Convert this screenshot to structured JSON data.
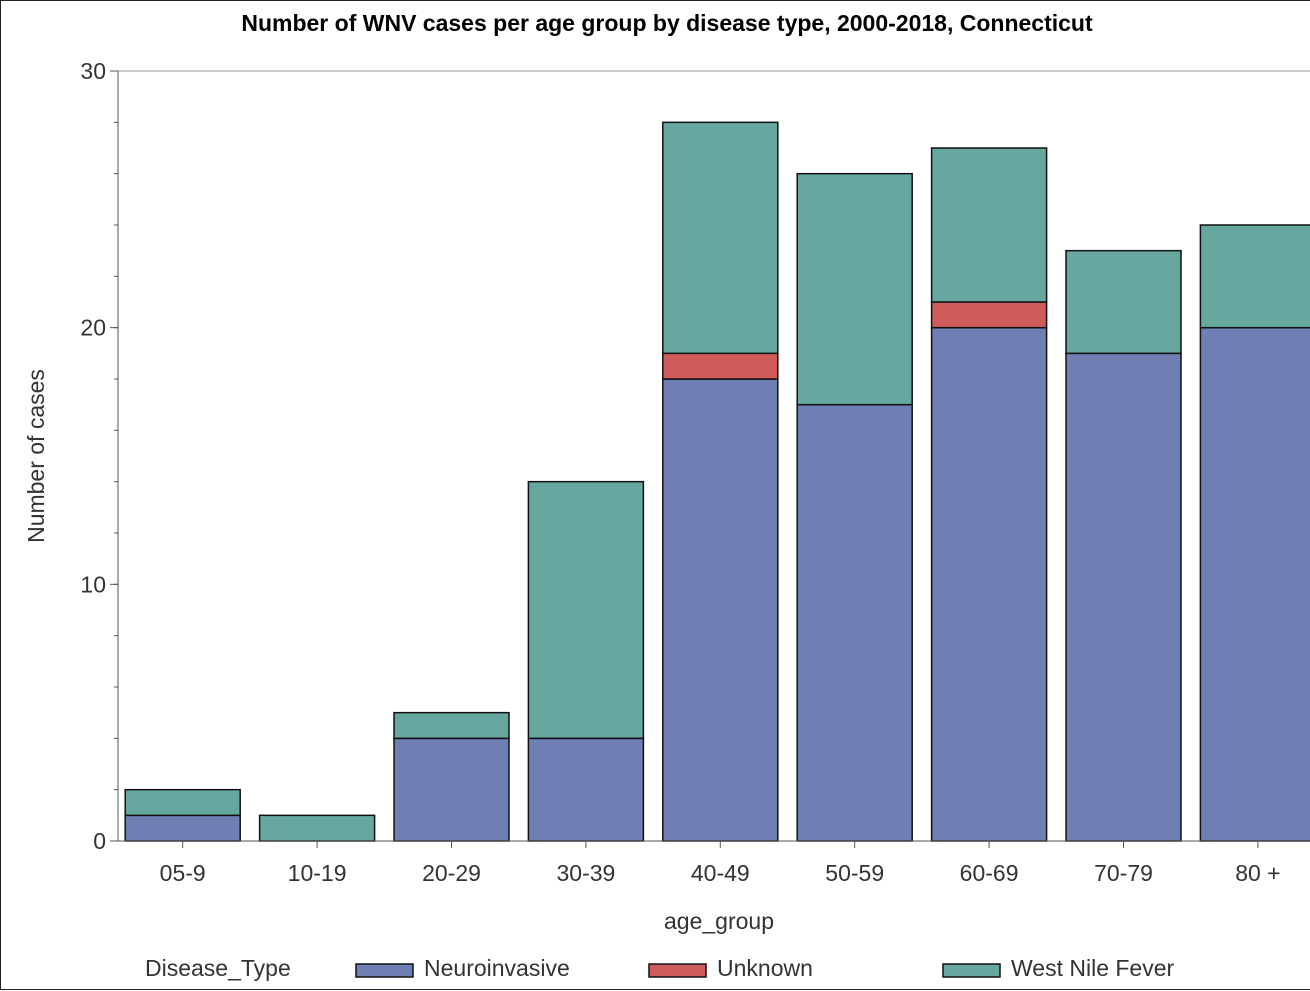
{
  "chart_data": {
    "type": "bar",
    "stacked": true,
    "title": "Number of WNV cases per age group by disease type, 2000-2018, Connecticut",
    "xlabel": "age_group",
    "ylabel": "Number of cases",
    "ylim": [
      0,
      30
    ],
    "yticks": [
      0,
      10,
      20,
      30
    ],
    "grid": false,
    "legend_title": "Disease_Type",
    "legend_position": "bottom",
    "categories": [
      "05-9",
      "10-19",
      "20-29",
      "30-39",
      "40-49",
      "50-59",
      "60-69",
      "70-79",
      "80 +"
    ],
    "series": [
      {
        "name": "Neuroinvasive",
        "color": "#6f7eb3",
        "values": [
          1,
          0,
          4,
          4,
          18,
          17,
          20,
          19,
          20
        ]
      },
      {
        "name": "Unknown",
        "color": "#d05b5b",
        "values": [
          0,
          0,
          0,
          0,
          1,
          0,
          1,
          0,
          0
        ]
      },
      {
        "name": "West Nile Fever",
        "color": "#66a8a0",
        "values": [
          1,
          1,
          1,
          10,
          9,
          9,
          6,
          4,
          4
        ]
      }
    ]
  }
}
